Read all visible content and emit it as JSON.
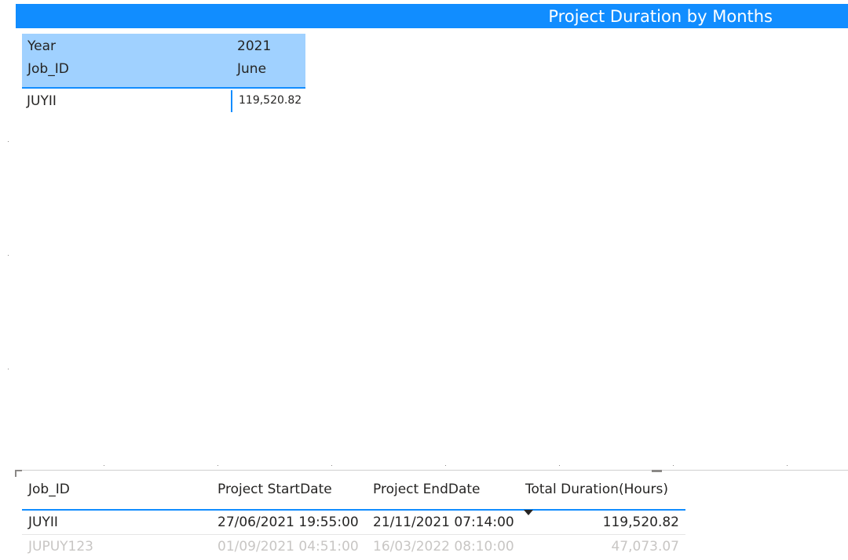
{
  "title": "Project Duration by Months",
  "matrix": {
    "header": {
      "row1_label": "Year",
      "row2_label": "Job_ID",
      "year": "2021",
      "month": "June"
    },
    "rows": [
      {
        "job_id": "JUYII",
        "value": "119,520.82"
      }
    ]
  },
  "table": {
    "columns": [
      "Job_ID",
      "Project StartDate",
      "Project EndDate",
      "Total Duration(Hours)"
    ],
    "sort_icon": "sort-descending-icon",
    "rows": [
      [
        "JUYII",
        "27/06/2021 19:55:00",
        "21/11/2021 07:14:00",
        "119,520.82"
      ],
      [
        "JUPUY123",
        "01/09/2021 04:51:00",
        "16/03/2022 08:10:00",
        "47,073.07"
      ]
    ]
  },
  "colors": {
    "accent": "#118dff",
    "header_fill": "#a0d1ff",
    "faded_text": "#c8c6c4"
  }
}
